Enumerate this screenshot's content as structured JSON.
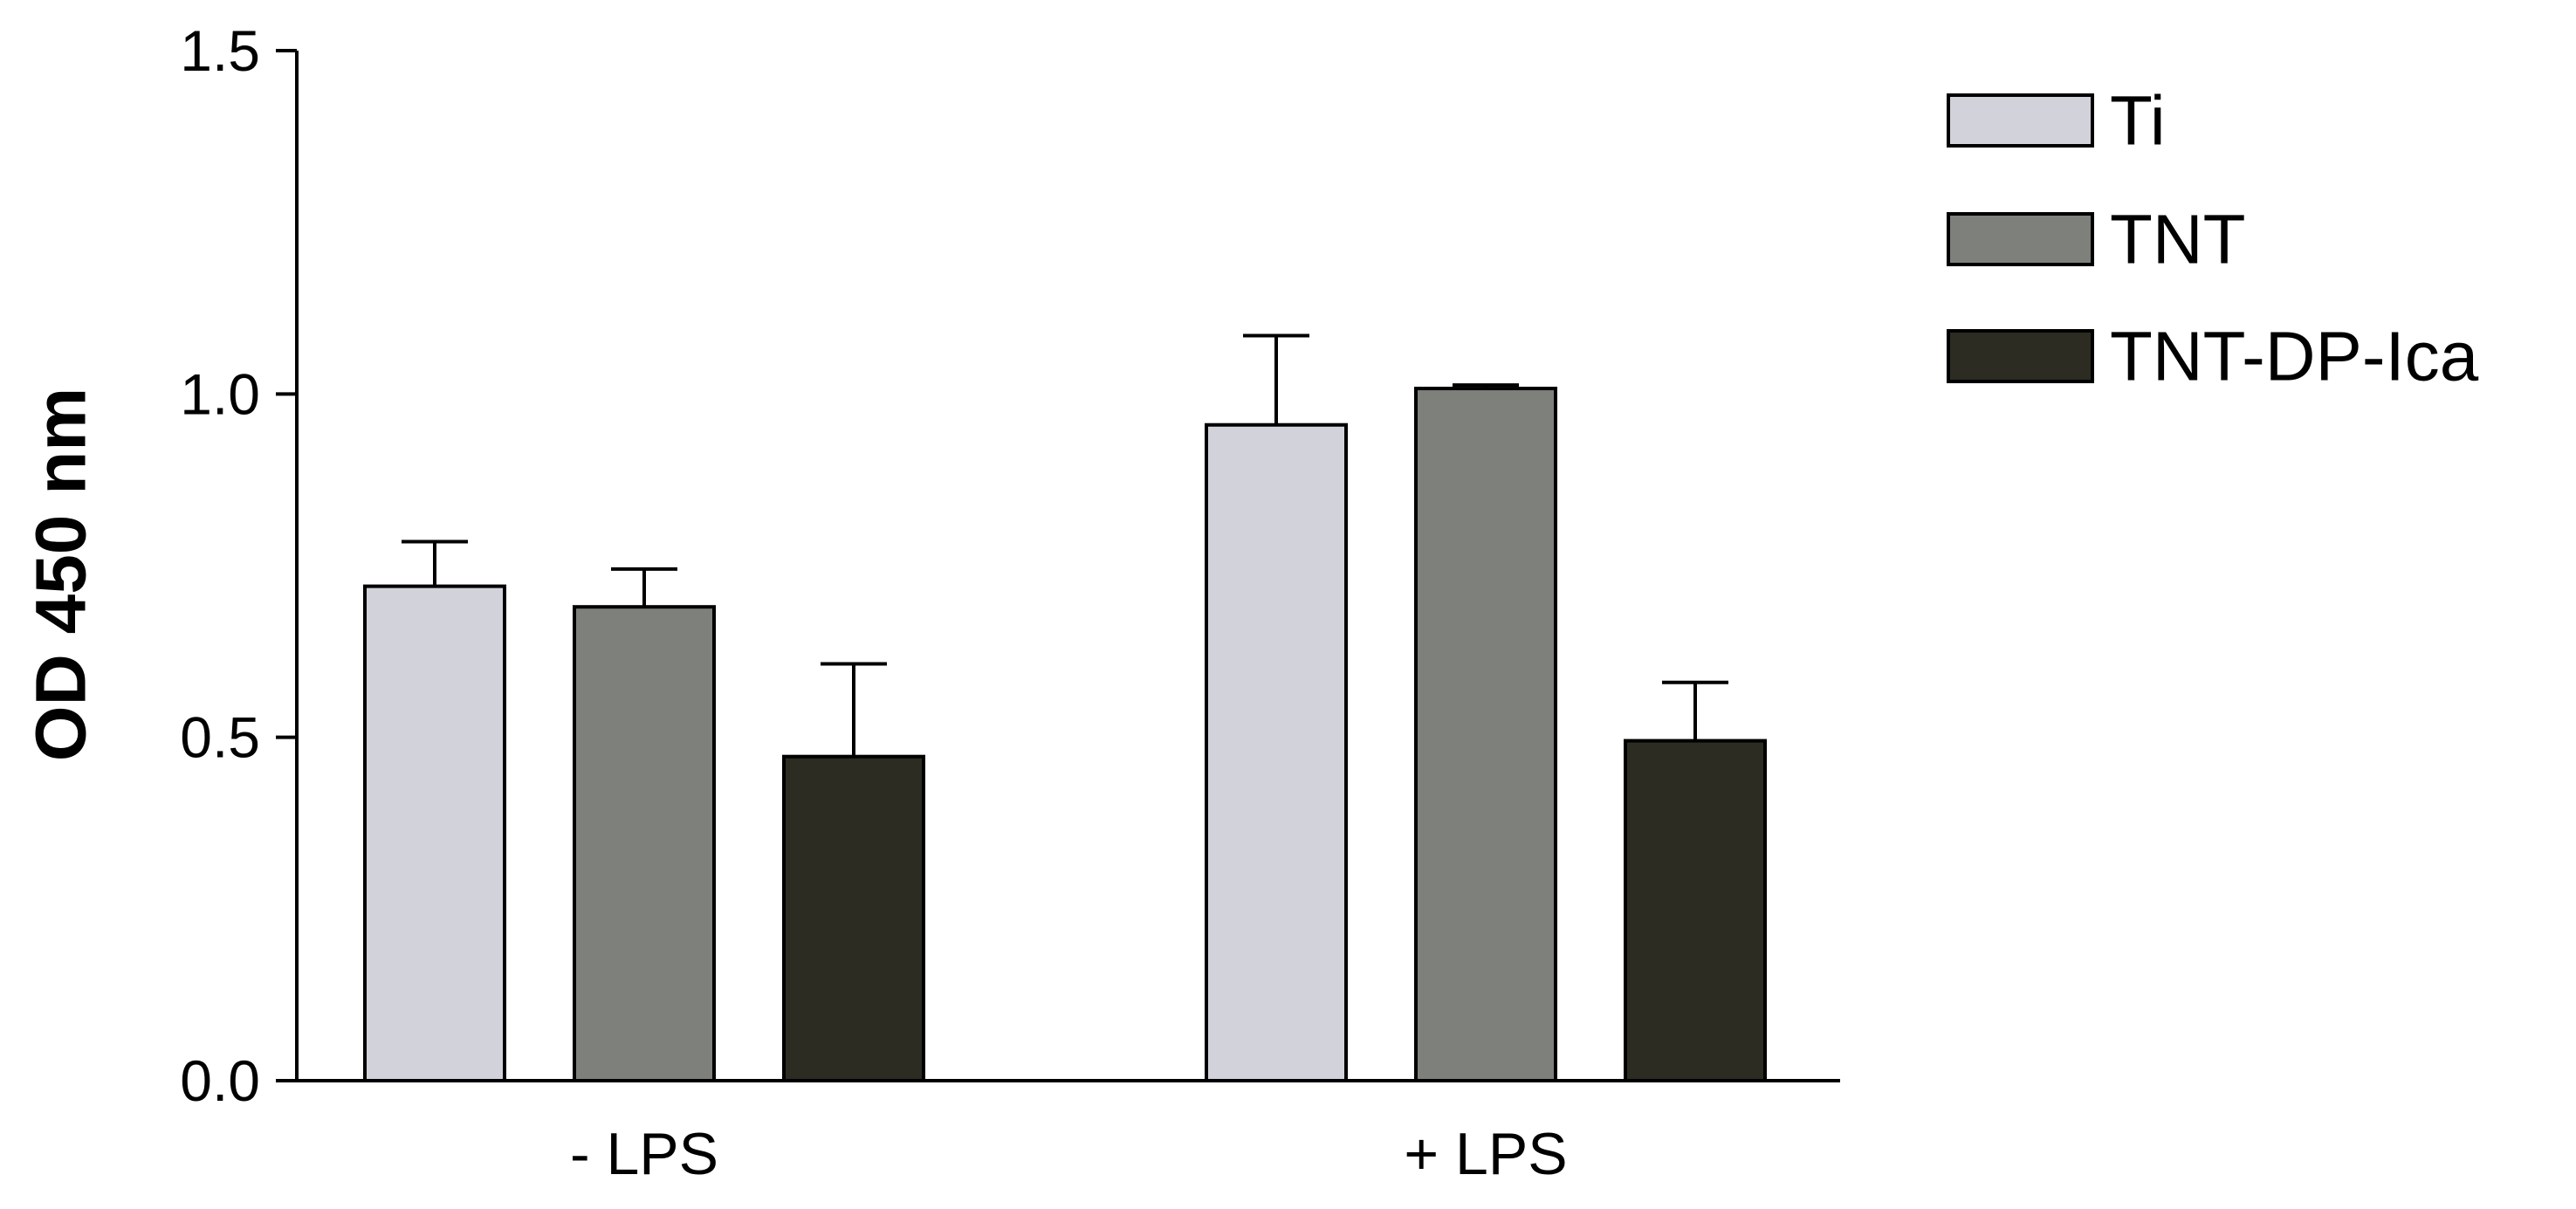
{
  "chart_data": {
    "type": "bar",
    "categories": [
      "- LPS",
      "+ LPS"
    ],
    "series": [
      {
        "name": "Ti",
        "values": [
          0.72,
          0.955
        ],
        "errors": [
          0.065,
          0.13
        ],
        "color": "#d2d2da"
      },
      {
        "name": "TNT",
        "values": [
          0.69,
          1.008
        ],
        "errors": [
          0.055,
          0.005
        ],
        "color": "#7e807b"
      },
      {
        "name": "TNT-DP-Ica",
        "values": [
          0.472,
          0.495
        ],
        "errors": [
          0.135,
          0.085
        ],
        "color": "#2c2c22"
      }
    ],
    "ylabel": "OD 450 nm",
    "xlabel": "",
    "ylim": [
      0,
      1.5
    ],
    "yticks": [
      "0.0",
      "0.5",
      "1.0",
      "1.5"
    ],
    "ytick_values": [
      0,
      0.5,
      1.0,
      1.5
    ],
    "grid": false,
    "legend_position": "top-right"
  }
}
